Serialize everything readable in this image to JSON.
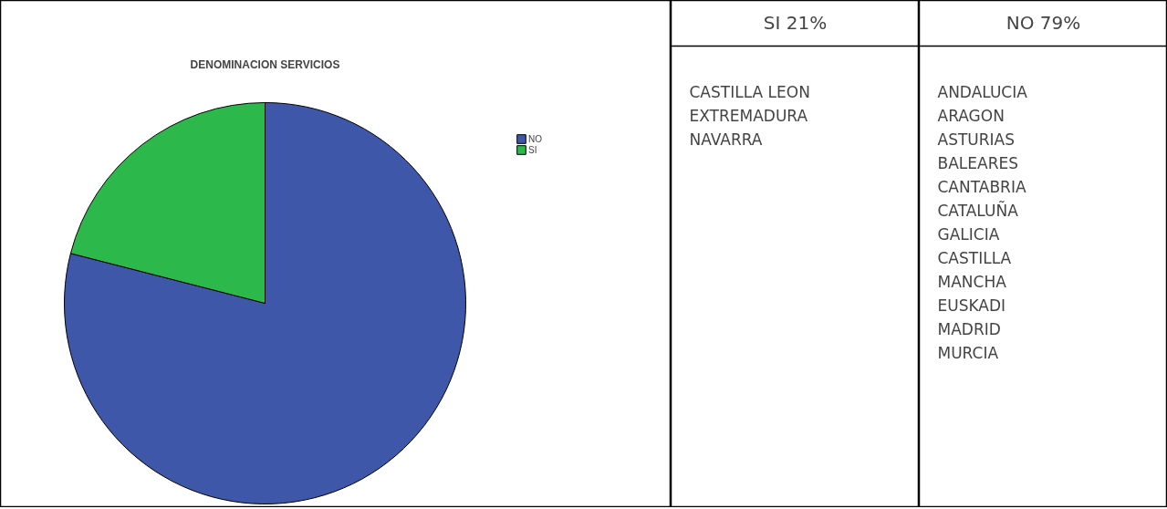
{
  "chart_data": [
    {
      "type": "pie",
      "title": "DENOMINACION SERVICIOS",
      "categories": [
        "NO",
        "SI"
      ],
      "values": [
        79,
        21
      ],
      "colors": [
        "#3f57a8",
        "#2db84b"
      ],
      "legend": "top right"
    },
    {
      "type": "other",
      "title": "SI 21%",
      "annotations": [
        "CASTILLA LEON",
        "EXTREMADURA",
        "NAVARRA"
      ]
    },
    {
      "type": "other",
      "title": "NO 79%",
      "annotations": [
        "ANDALUCIA",
        "ARAGON",
        "ASTURIAS",
        "BALEARES",
        "CANTABRIA",
        "CATALUÑA",
        "GALICIA",
        "CASTILLA",
        "MANCHA",
        "EUSKADI",
        "MADRID",
        "MURCIA"
      ]
    }
  ]
}
